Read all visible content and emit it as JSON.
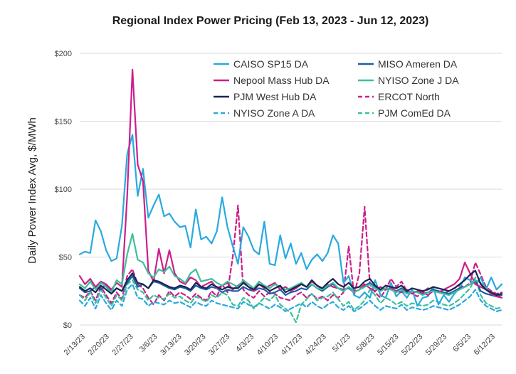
{
  "chart_data": {
    "type": "line",
    "title": "Regional Index Power Pricing (Feb 13, 2023 - Jun 12, 2023)",
    "xlabel": "",
    "ylabel": "Daily Power Index Avg, $/MWh",
    "ylim": [
      0,
      200
    ],
    "yticks": [
      {
        "value": 0,
        "label": "$0"
      },
      {
        "value": 50,
        "label": "$50"
      },
      {
        "value": 100,
        "label": "$100"
      },
      {
        "value": 150,
        "label": "$150"
      },
      {
        "value": 200,
        "label": "$200"
      }
    ],
    "xticks": [
      "2/13/23",
      "2/20/23",
      "2/27/23",
      "3/6/23",
      "3/13/23",
      "3/20/23",
      "3/27/23",
      "4/3/23",
      "4/10/23",
      "4/17/23",
      "4/24/23",
      "5/1/23",
      "5/8/23",
      "5/15/23",
      "5/22/23",
      "5/29/23",
      "6/5/23",
      "6/12/23"
    ],
    "grid": true,
    "legend_position": "top",
    "series": [
      {
        "name": "CAISO SP15 DA",
        "color": "#29a9e0",
        "dash": "solid",
        "values": [
          52,
          54,
          53,
          77,
          69,
          55,
          47,
          49,
          73,
          126,
          140,
          95,
          115,
          79,
          88,
          96,
          80,
          82,
          76,
          72,
          73,
          57,
          85,
          63,
          65,
          60,
          69,
          94,
          72,
          58,
          45,
          72,
          65,
          55,
          52,
          76,
          45,
          44,
          66,
          49,
          60,
          45,
          53,
          41,
          48,
          52,
          47,
          53,
          66,
          60,
          31,
          36,
          22,
          20,
          24,
          20,
          33,
          22,
          20,
          31,
          21,
          25,
          20,
          26,
          14,
          20,
          21,
          28,
          15,
          22,
          17,
          23,
          27,
          35,
          33,
          30,
          35,
          26,
          35,
          26,
          30
        ]
      },
      {
        "name": "MISO Ameren DA",
        "color": "#1b5fa8",
        "dash": "solid",
        "values": [
          27,
          24,
          25,
          28,
          26,
          30,
          24,
          27,
          25,
          31,
          36,
          28,
          30,
          27,
          32,
          31,
          29,
          27,
          26,
          28,
          27,
          25,
          29,
          27,
          26,
          28,
          27,
          24,
          26,
          25,
          25,
          28,
          26,
          25,
          27,
          26,
          23,
          24,
          26,
          22,
          24,
          25,
          27,
          26,
          30,
          27,
          25,
          28,
          30,
          27,
          26,
          27,
          24,
          26,
          29,
          31,
          28,
          25,
          27,
          26,
          25,
          27,
          24,
          25,
          24,
          23,
          24,
          26,
          25,
          24,
          23,
          25,
          27,
          28,
          30,
          33,
          25,
          23,
          22,
          21,
          22
        ]
      },
      {
        "name": "Nepool Mass Hub DA",
        "color": "#cc1f8a",
        "dash": "solid",
        "values": [
          36,
          30,
          34,
          28,
          32,
          30,
          26,
          31,
          28,
          95,
          188,
          118,
          106,
          40,
          32,
          56,
          38,
          55,
          38,
          32,
          30,
          35,
          33,
          28,
          30,
          32,
          27,
          29,
          31,
          26,
          29,
          32,
          28,
          25,
          30,
          27,
          29,
          31,
          26,
          28,
          25,
          27,
          30,
          28,
          32,
          29,
          26,
          30,
          28,
          27,
          25,
          28,
          24,
          26,
          30,
          27,
          25,
          28,
          26,
          27,
          25,
          24,
          26,
          23,
          25,
          24,
          22,
          25,
          24,
          26,
          28,
          30,
          34,
          46,
          38,
          30,
          28,
          26,
          23,
          21,
          20
        ]
      },
      {
        "name": "NYISO Zone J DA",
        "color": "#3dbf9a",
        "dash": "solid",
        "values": [
          30,
          27,
          32,
          26,
          31,
          28,
          24,
          33,
          30,
          52,
          67,
          48,
          46,
          38,
          35,
          41,
          39,
          43,
          36,
          34,
          31,
          38,
          41,
          32,
          33,
          34,
          31,
          29,
          32,
          30,
          28,
          33,
          30,
          27,
          32,
          29,
          27,
          30,
          28,
          26,
          27,
          29,
          31,
          28,
          30,
          27,
          26,
          29,
          31,
          27,
          25,
          28,
          24,
          26,
          28,
          30,
          27,
          25,
          27,
          26,
          24,
          26,
          23,
          25,
          24,
          22,
          24,
          25,
          24,
          23,
          22,
          24,
          26,
          28,
          30,
          33,
          31,
          27,
          24,
          22,
          23
        ]
      },
      {
        "name": "PJM West Hub DA",
        "color": "#1a2550",
        "dash": "solid",
        "values": [
          28,
          25,
          27,
          24,
          29,
          26,
          23,
          27,
          25,
          33,
          38,
          31,
          30,
          27,
          33,
          32,
          30,
          28,
          27,
          29,
          28,
          26,
          31,
          28,
          27,
          30,
          28,
          26,
          28,
          27,
          27,
          31,
          28,
          26,
          30,
          28,
          25,
          27,
          29,
          24,
          26,
          28,
          30,
          28,
          33,
          29,
          27,
          31,
          34,
          30,
          28,
          31,
          27,
          28,
          32,
          34,
          29,
          26,
          29,
          28,
          27,
          29,
          25,
          27,
          26,
          25,
          26,
          28,
          27,
          26,
          25,
          27,
          30,
          33,
          37,
          40,
          30,
          26,
          24,
          22,
          23
        ]
      },
      {
        "name": "ERCOT North",
        "color": "#cc1f8a",
        "dash": "dashed",
        "values": [
          22,
          20,
          25,
          18,
          28,
          22,
          16,
          24,
          19,
          36,
          41,
          30,
          27,
          20,
          15,
          22,
          18,
          25,
          21,
          24,
          22,
          19,
          23,
          20,
          18,
          25,
          21,
          30,
          24,
          50,
          88,
          26,
          22,
          20,
          25,
          21,
          24,
          23,
          20,
          19,
          18,
          22,
          24,
          20,
          23,
          19,
          21,
          18,
          22,
          20,
          24,
          58,
          22,
          38,
          87,
          30,
          24,
          20,
          26,
          34,
          28,
          32,
          25,
          23,
          21,
          24,
          27,
          26,
          24,
          23,
          25,
          27,
          29,
          28,
          31,
          46,
          37,
          28,
          25,
          23,
          24
        ]
      },
      {
        "name": "NYISO Zone A DA",
        "color": "#29a9e0",
        "dash": "dashed",
        "values": [
          18,
          14,
          20,
          12,
          22,
          16,
          11,
          18,
          14,
          26,
          30,
          20,
          19,
          14,
          17,
          16,
          15,
          18,
          16,
          17,
          15,
          13,
          17,
          15,
          14,
          18,
          16,
          15,
          14,
          13,
          12,
          17,
          15,
          13,
          16,
          14,
          12,
          15,
          13,
          10,
          12,
          14,
          16,
          13,
          17,
          14,
          12,
          15,
          17,
          13,
          11,
          14,
          10,
          12,
          15,
          18,
          14,
          11,
          14,
          13,
          12,
          15,
          11,
          13,
          12,
          11,
          12,
          14,
          13,
          12,
          11,
          13,
          15,
          18,
          21,
          26,
          18,
          14,
          12,
          10,
          11
        ]
      },
      {
        "name": "PJM ComEd DA",
        "color": "#3dbf9a",
        "dash": "dashed",
        "values": [
          22,
          18,
          24,
          16,
          26,
          20,
          14,
          22,
          18,
          30,
          33,
          26,
          24,
          18,
          22,
          20,
          19,
          23,
          20,
          21,
          18,
          16,
          21,
          19,
          17,
          22,
          20,
          24,
          22,
          15,
          14,
          20,
          18,
          12,
          16,
          20,
          18,
          22,
          15,
          12,
          9,
          2,
          15,
          19,
          23,
          18,
          20,
          21,
          24,
          19,
          14,
          17,
          11,
          14,
          18,
          26,
          22,
          16,
          20,
          18,
          15,
          17,
          14,
          16,
          15,
          14,
          15,
          18,
          17,
          15,
          14,
          16,
          19,
          23,
          27,
          35,
          22,
          16,
          14,
          12,
          13
        ]
      }
    ]
  }
}
